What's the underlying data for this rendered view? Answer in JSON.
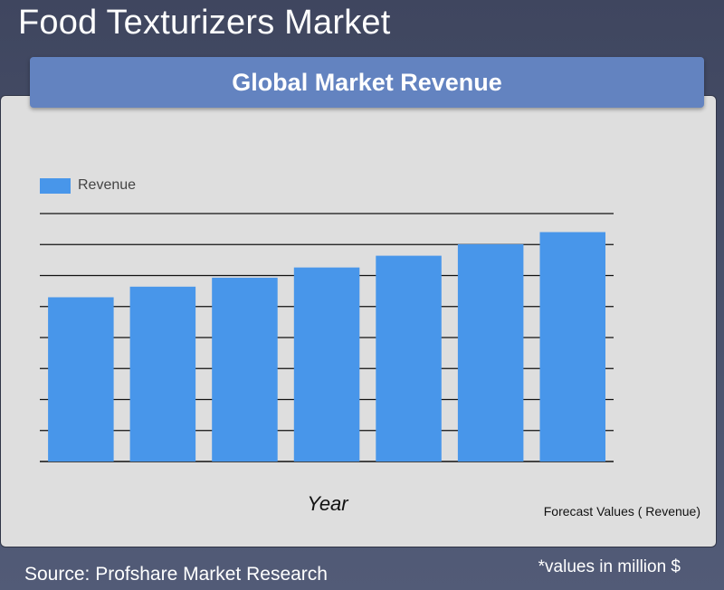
{
  "page_title": "Food Texturizers Market",
  "header": {
    "title": "Global Market Revenue"
  },
  "chart_data": {
    "type": "bar",
    "categories": [
      "",
      "",
      "",
      "",
      "",
      "",
      ""
    ],
    "series": [
      {
        "name": "Revenue",
        "values": [
          53,
          56.4,
          59.3,
          62.6,
          66.4,
          70.1,
          74
        ]
      }
    ],
    "ylim": [
      0,
      80
    ],
    "xlabel": "Year",
    "ylabel": "",
    "grid": true,
    "legend": "top-left",
    "colors": {
      "bar": "#4896ea",
      "grid": "#111111",
      "panel": "#dedede"
    }
  },
  "notes": {
    "forecast": "Forecast Values ( Revenue)",
    "source": "Source: Profshare Market Research",
    "units": "*values in million $"
  }
}
